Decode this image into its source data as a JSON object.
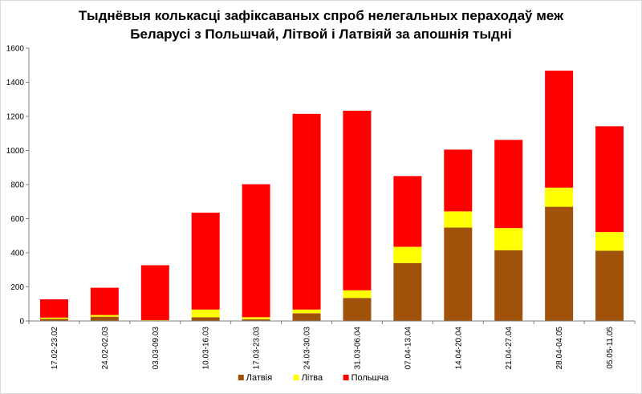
{
  "chart_data": {
    "type": "bar",
    "stacked": true,
    "title_line1": "Тыднёвыя колькасці зафіксаваных спроб нелегальных пераходаў меж",
    "title_line2": "Беларусі з Польшчай, Літвой і Латвіяй за апошнія тыдні",
    "categories": [
      "17.02-23.02",
      "24.02-02.03",
      "03.03-09.03",
      "10.03-16.03",
      "17.03-23.03",
      "24.03-30.03",
      "31.03-06.04",
      "07.04-13.04",
      "14.04-20.04",
      "21.04-27.04",
      "28.04-04.05",
      "05.05-11.05"
    ],
    "series": [
      {
        "name": "Латвія",
        "color": "#a0520a",
        "values": [
          12,
          25,
          3,
          22,
          10,
          45,
          135,
          340,
          548,
          415,
          670,
          412
        ]
      },
      {
        "name": "Літва",
        "color": "#ffff00",
        "values": [
          8,
          10,
          2,
          45,
          12,
          22,
          45,
          95,
          95,
          130,
          112,
          110
        ]
      },
      {
        "name": "Польшча",
        "color": "#ff0000",
        "values": [
          107,
          160,
          322,
          568,
          780,
          1148,
          1053,
          415,
          362,
          517,
          686,
          620
        ]
      }
    ],
    "y_ticks": [
      "0",
      "200",
      "400",
      "600",
      "800",
      "1000",
      "1200",
      "1400",
      "1600"
    ],
    "ylim": [
      0,
      1600
    ],
    "legend_position": "bottom"
  }
}
